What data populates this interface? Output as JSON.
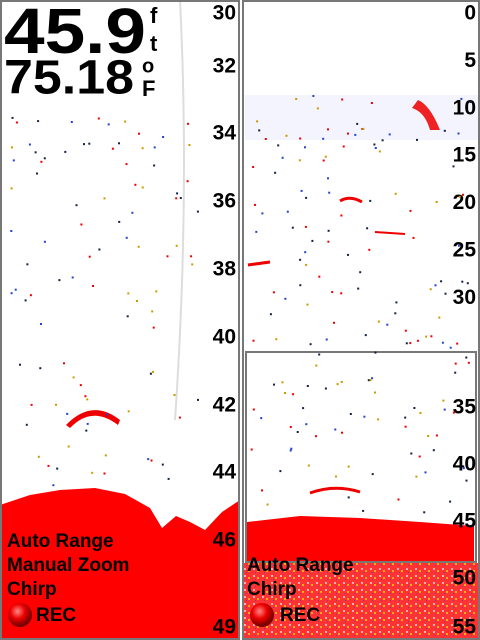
{
  "depth": {
    "value": "45.9",
    "unit": [
      "f",
      "t"
    ]
  },
  "temperature": {
    "value": "75.18",
    "unit": [
      "o",
      "F"
    ]
  },
  "left_panel": {
    "scale": [
      "30",
      "32",
      "34",
      "36",
      "38",
      "40",
      "42",
      "44",
      "46",
      "49"
    ],
    "labels": [
      "Auto Range",
      "Manual Zoom",
      "Chirp"
    ],
    "record": "REC"
  },
  "right_panel": {
    "scale": [
      "0",
      "5",
      "10",
      "15",
      "20",
      "25",
      "30"
    ],
    "zoom_scale": [
      "35",
      "40",
      "45",
      "50",
      "55"
    ],
    "labels": [
      "Auto Range",
      "Chirp"
    ],
    "record": "REC"
  }
}
